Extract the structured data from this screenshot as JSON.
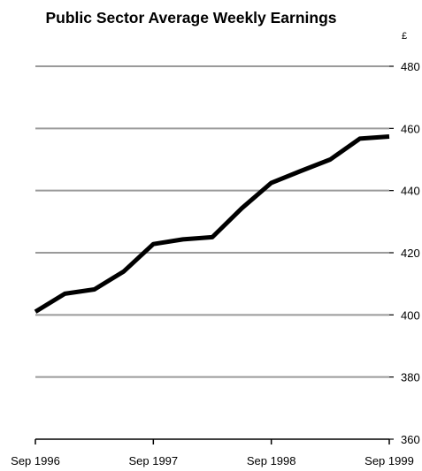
{
  "chart_data": {
    "type": "line",
    "title": "Public Sector Average Weekly Earnings",
    "y_unit": "£",
    "xlabel": "",
    "ylabel": "",
    "ylim": [
      360,
      480
    ],
    "yticks": [
      360,
      380,
      400,
      420,
      440,
      460,
      480
    ],
    "x_tick_labels": [
      "Sep 1996",
      "Sep 1997",
      "Sep 1998",
      "Sep 1999"
    ],
    "x_range_months": [
      0,
      36
    ],
    "grid": true,
    "legend": "none",
    "series": [
      {
        "color": "#000000",
        "points": [
          {
            "month": 0,
            "value": 401
          },
          {
            "month": 3,
            "value": 406.8
          },
          {
            "month": 6,
            "value": 408.2
          },
          {
            "month": 9,
            "value": 414
          },
          {
            "month": 12,
            "value": 422.8
          },
          {
            "month": 15,
            "value": 424.3
          },
          {
            "month": 18,
            "value": 425
          },
          {
            "month": 21,
            "value": 434.3
          },
          {
            "month": 24,
            "value": 442.5
          },
          {
            "month": 27,
            "value": 446.3
          },
          {
            "month": 30,
            "value": 450
          },
          {
            "month": 33,
            "value": 456.7
          },
          {
            "month": 36,
            "value": 457.4
          }
        ]
      }
    ],
    "colors": {
      "line": "#000000",
      "grid": "#9a9a9a",
      "axis": "#000000"
    }
  }
}
